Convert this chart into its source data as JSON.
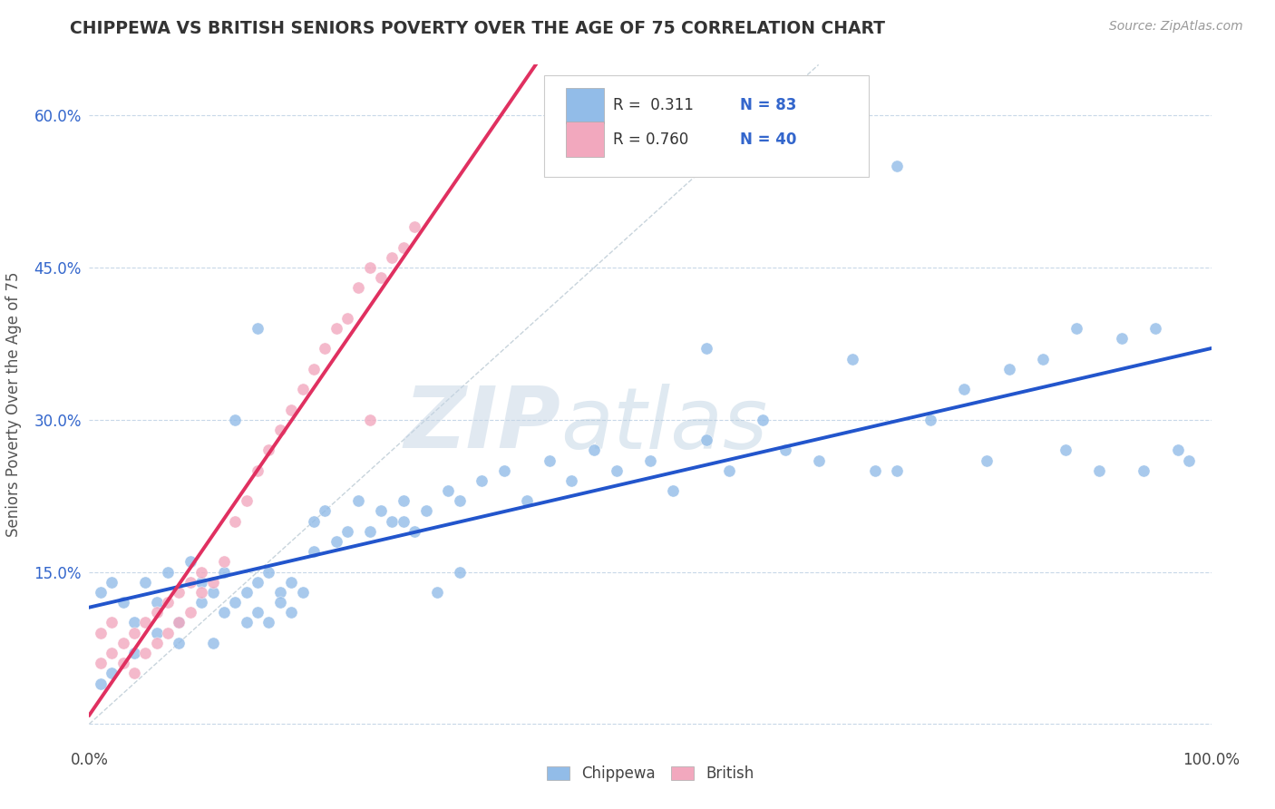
{
  "title": "CHIPPEWA VS BRITISH SENIORS POVERTY OVER THE AGE OF 75 CORRELATION CHART",
  "source_text": "Source: ZipAtlas.com",
  "ylabel": "Seniors Poverty Over the Age of 75",
  "xlim": [
    0,
    1.0
  ],
  "ylim": [
    -0.02,
    0.65
  ],
  "xticks": [
    0.0,
    0.2,
    0.4,
    0.6,
    0.8,
    1.0
  ],
  "xticklabels": [
    "0.0%",
    "",
    "",
    "",
    "",
    "100.0%"
  ],
  "yticks": [
    0.0,
    0.15,
    0.3,
    0.45,
    0.6
  ],
  "yticklabels": [
    "",
    "15.0%",
    "30.0%",
    "45.0%",
    "60.0%"
  ],
  "chippewa_color": "#92bce8",
  "british_color": "#f2a8be",
  "chippewa_line_color": "#2255cc",
  "british_line_color": "#e03060",
  "diagonal_color": "#c8d4dc",
  "background_color": "#ffffff",
  "grid_color": "#c8d8e8",
  "legend_R_chippewa": "0.311",
  "legend_N_chippewa": "83",
  "legend_R_british": "0.760",
  "legend_N_british": "40",
  "watermark_zip": "ZIP",
  "watermark_atlas": "atlas",
  "title_color": "#333333",
  "source_color": "#999999",
  "ylabel_color": "#555555",
  "tick_color": "#3366cc",
  "legend_text_color": "#333333",
  "legend_value_color": "#3366cc"
}
